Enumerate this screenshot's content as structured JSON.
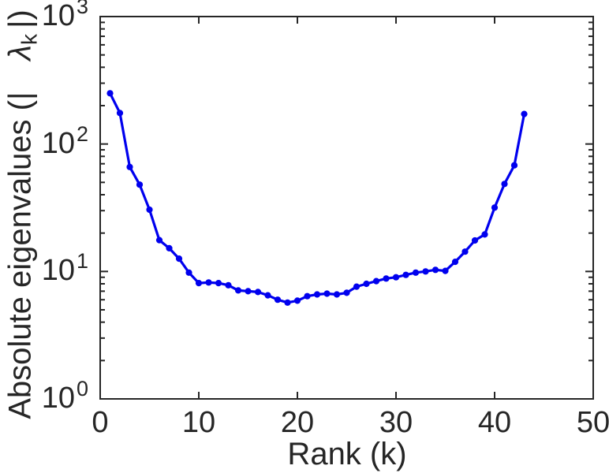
{
  "figure": {
    "background": "#ffffff"
  },
  "chart_data": {
    "type": "line",
    "title": "",
    "xlabel": "Rank (k)",
    "ylabel": "Absolute eigenvalues (| λk|)",
    "ylabel_parts": {
      "prefix": "Absolute eigenvalues (|",
      "symbol": "λ",
      "subscript": "k",
      "suffix": "|)"
    },
    "xscale": "linear",
    "yscale": "log",
    "xlim": [
      0,
      50
    ],
    "ylim": [
      1,
      1000
    ],
    "x_ticks": [
      0,
      10,
      20,
      30,
      40,
      50
    ],
    "y_tick_exponents": [
      0,
      1,
      2,
      3
    ],
    "y_tick_base": "10",
    "grid": false,
    "legend": null,
    "axis_color": "#262626",
    "text_color": "#262626",
    "series": [
      {
        "name": "absolute eigenvalues",
        "color": "#0000ee",
        "marker": "filled-circle",
        "x": [
          1,
          2,
          3,
          4,
          5,
          6,
          7,
          8,
          9,
          10,
          11,
          12,
          13,
          14,
          15,
          16,
          17,
          18,
          19,
          20,
          21,
          22,
          23,
          24,
          25,
          26,
          27,
          28,
          29,
          30,
          31,
          32,
          33,
          34,
          35,
          36,
          37,
          38,
          39,
          40,
          41,
          42,
          43
        ],
        "y": [
          250,
          175,
          66,
          48,
          30.5,
          17.6,
          15.2,
          12.6,
          9.8,
          8.1,
          8.2,
          8.1,
          7.8,
          7.1,
          7.0,
          6.9,
          6.5,
          6.0,
          5.7,
          5.9,
          6.4,
          6.6,
          6.7,
          6.6,
          6.8,
          7.6,
          8.0,
          8.4,
          8.8,
          9.0,
          9.4,
          9.8,
          10.0,
          10.3,
          10.1,
          11.9,
          14.3,
          17.5,
          19.5,
          31.7,
          48.6,
          68,
          172
        ]
      }
    ]
  }
}
